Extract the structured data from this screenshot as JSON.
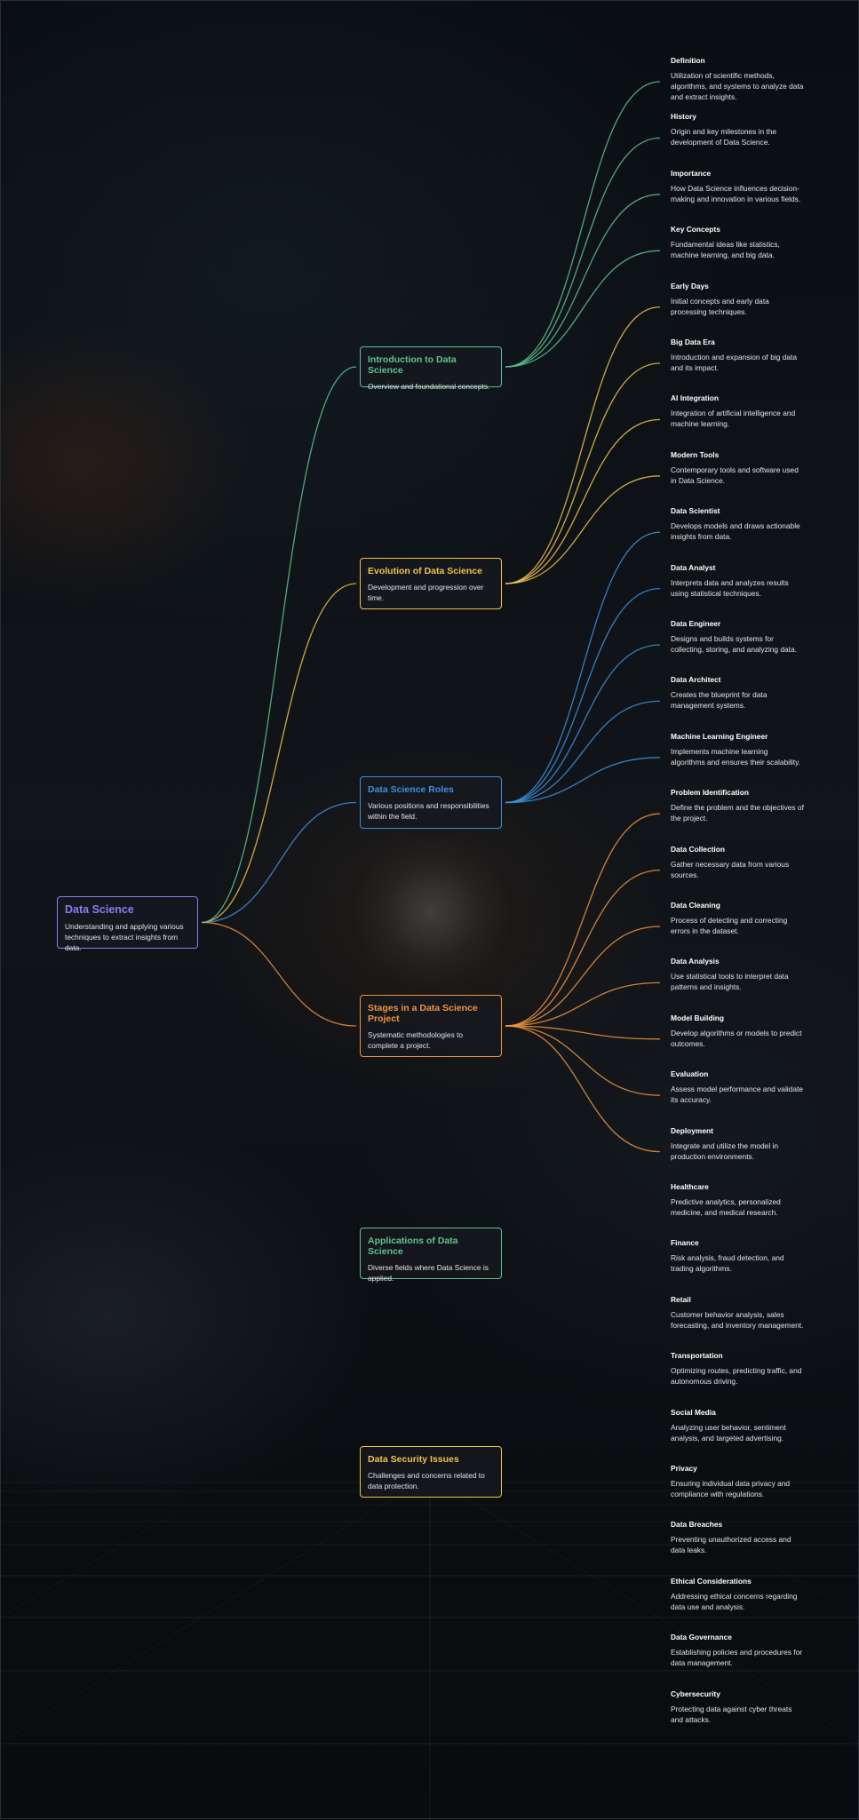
{
  "colors": {
    "root": "#8a7cf0",
    "introduction": "#5fc28e",
    "evolution": "#f0c24b",
    "roles": "#3d8fe0",
    "stages": "#f0943d",
    "applications": "#5fc28e",
    "security": "#f0c24b"
  },
  "root": {
    "title": "Data Science",
    "desc": "Understanding and applying various techniques to extract insights from data."
  },
  "branches": [
    {
      "key": "introduction",
      "title": "Introduction to Data Science",
      "desc": "Overview and foundational concepts.",
      "children": [
        {
          "title": "Definition",
          "desc": "Utilization of scientific methods, algorithms, and systems to analyze data and extract insights."
        },
        {
          "title": "History",
          "desc": "Origin and key milestones in the development of Data Science."
        },
        {
          "title": "Importance",
          "desc": "How Data Science influences decision-making and innovation in various fields."
        },
        {
          "title": "Key Concepts",
          "desc": "Fundamental ideas like statistics, machine learning, and big data."
        }
      ]
    },
    {
      "key": "evolution",
      "title": "Evolution of Data Science",
      "desc": "Development and progression over time.",
      "children": [
        {
          "title": "Early Days",
          "desc": "Initial concepts and early data processing techniques."
        },
        {
          "title": "Big Data Era",
          "desc": "Introduction and expansion of big data and its impact."
        },
        {
          "title": "AI Integration",
          "desc": "Integration of artificial intelligence and machine learning."
        },
        {
          "title": "Modern Tools",
          "desc": "Contemporary tools and software used in Data Science."
        }
      ]
    },
    {
      "key": "roles",
      "title": "Data Science Roles",
      "desc": "Various positions and responsibilities within the field.",
      "children": [
        {
          "title": "Data Scientist",
          "desc": "Develops models and draws actionable insights from data."
        },
        {
          "title": "Data Analyst",
          "desc": "Interprets data and analyzes results using statistical techniques."
        },
        {
          "title": "Data Engineer",
          "desc": "Designs and builds systems for collecting, storing, and analyzing data."
        },
        {
          "title": "Data Architect",
          "desc": "Creates the blueprint for data management systems."
        },
        {
          "title": "Machine Learning Engineer",
          "desc": "Implements machine learning algorithms and ensures their scalability."
        }
      ]
    },
    {
      "key": "stages",
      "title": "Stages in a Data Science Project",
      "desc": "Systematic methodologies to complete a project.",
      "children": [
        {
          "title": "Problem Identification",
          "desc": "Define the problem and the objectives of the project."
        },
        {
          "title": "Data Collection",
          "desc": "Gather necessary data from various sources."
        },
        {
          "title": "Data Cleaning",
          "desc": "Process of detecting and correcting errors in the dataset."
        },
        {
          "title": "Data Analysis",
          "desc": "Use statistical tools to interpret data patterns and insights."
        },
        {
          "title": "Model Building",
          "desc": "Develop algorithms or models to predict outcomes."
        },
        {
          "title": "Evaluation",
          "desc": "Assess model performance and validate its accuracy."
        },
        {
          "title": "Deployment",
          "desc": "Integrate and utilize the model in production environments."
        }
      ]
    },
    {
      "key": "applications",
      "title": "Applications of Data Science",
      "desc": "Diverse fields where Data Science is applied.",
      "children": [
        {
          "title": "Healthcare",
          "desc": "Predictive analytics, personalized medicine, and medical research."
        },
        {
          "title": "Finance",
          "desc": "Risk analysis, fraud detection, and trading algorithms."
        },
        {
          "title": "Retail",
          "desc": "Customer behavior analysis, sales forecasting, and inventory management."
        },
        {
          "title": "Transportation",
          "desc": "Optimizing routes, predicting traffic, and autonomous driving."
        },
        {
          "title": "Social Media",
          "desc": "Analyzing user behavior, sentiment analysis, and targeted advertising."
        }
      ]
    },
    {
      "key": "security",
      "title": "Data Security Issues",
      "desc": "Challenges and concerns related to data protection.",
      "children": [
        {
          "title": "Privacy",
          "desc": "Ensuring individual data privacy and compliance with regulations."
        },
        {
          "title": "Data Breaches",
          "desc": "Preventing unauthorized access and data leaks."
        },
        {
          "title": "Ethical Considerations",
          "desc": "Addressing ethical concerns regarding data use and analysis."
        },
        {
          "title": "Data Governance",
          "desc": "Establishing policies and procedures for data management."
        },
        {
          "title": "Cybersecurity",
          "desc": "Protecting data against cyber threats and attacks."
        }
      ]
    }
  ],
  "edges": [
    {
      "from": "root",
      "to": "introduction"
    },
    {
      "from": "root",
      "to": "evolution"
    },
    {
      "from": "root",
      "to": "roles"
    },
    {
      "from": "root",
      "to": "stages"
    },
    {
      "from": "introduction",
      "to": "children"
    },
    {
      "from": "evolution",
      "to": "children"
    },
    {
      "from": "roles",
      "to": "children"
    },
    {
      "from": "stages",
      "to": "children"
    }
  ]
}
